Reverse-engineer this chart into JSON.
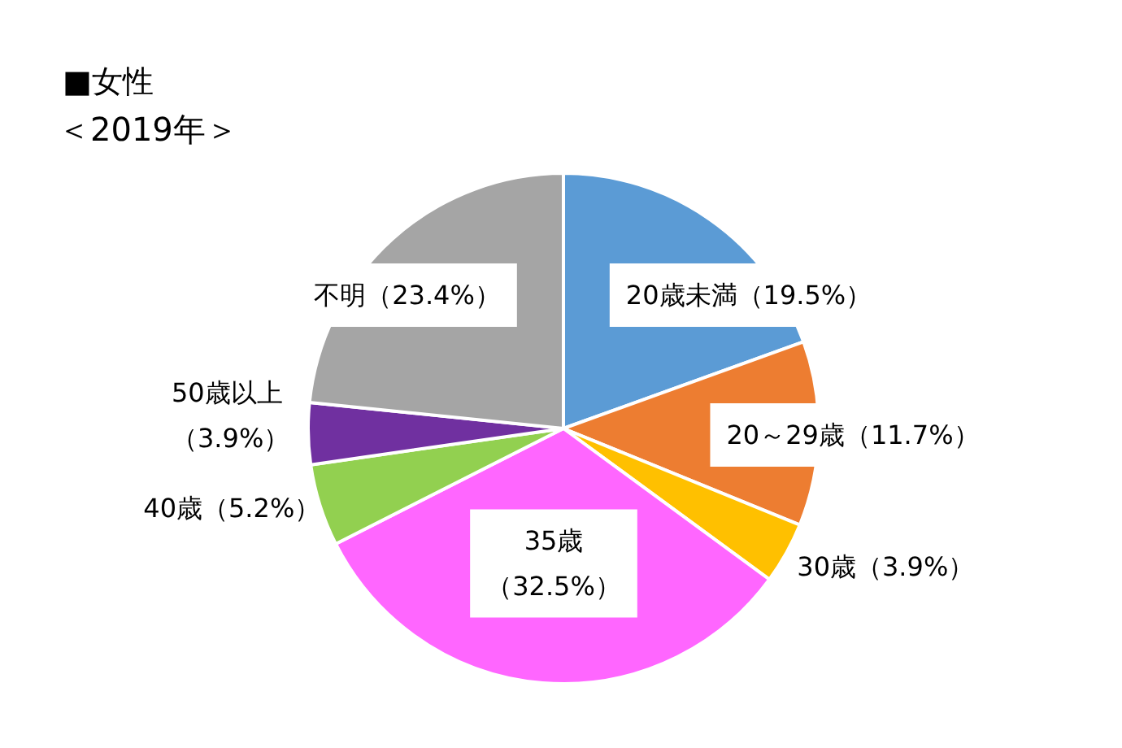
{
  "chart_data": {
    "type": "pie",
    "title": "■女性",
    "subtitle": "＜2019年＞",
    "categories": [
      "20歳未満",
      "20～29歳",
      "30歳",
      "35歳",
      "40歳",
      "50歳以上",
      "不明"
    ],
    "values": [
      19.5,
      11.7,
      3.9,
      32.5,
      5.2,
      3.9,
      23.4
    ],
    "value_labels": [
      "（19.5%）",
      "（11.7%）",
      "（3.9%）",
      "（32.5%）",
      "（5.2%）",
      "（3.9%）",
      "（23.4%）"
    ],
    "colors": [
      "#5b9bd5",
      "#ed7d31",
      "#ffc000",
      "#ff66ff",
      "#92d050",
      "#7030a0",
      "#a5a5a5"
    ]
  }
}
